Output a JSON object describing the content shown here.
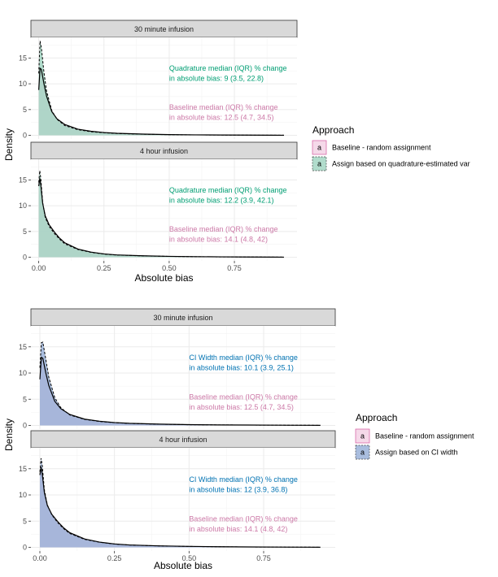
{
  "colors": {
    "baseline_fill": "#f3d0e3",
    "baseline_stroke": "#d6589f",
    "baseline_text": "#cc79a7",
    "quad_fill": "#9ed3bf",
    "quad_text": "#009e73",
    "ci_fill": "#93acd6",
    "ci_text": "#0072b2",
    "panel_bg": "#ffffff",
    "grid": "#ebebeb",
    "strip_bg": "#d9d9d9"
  },
  "chart_data": [
    {
      "type": "area",
      "name": "quadrature-figure",
      "xlabel": "Absolute bias",
      "ylabel": "Density",
      "xlim": [
        -0.03,
        0.99
      ],
      "ylim": [
        -0.7,
        19
      ],
      "x_ticks": [
        0,
        0.25,
        0.5,
        0.75
      ],
      "x_tick_labels": [
        "0.00",
        "0.25",
        "0.50",
        "0.75"
      ],
      "y_ticks": [
        0,
        5,
        10,
        15
      ],
      "y_tick_labels": [
        "0",
        "5",
        "10",
        "15"
      ],
      "legend": {
        "title": "Approach",
        "entries": [
          {
            "label": "Baseline - random assignment",
            "key": "a",
            "series": "baseline"
          },
          {
            "label": "Assign based on quadrature-estimated var",
            "key": "a",
            "series": "alt"
          }
        ]
      },
      "facets": [
        {
          "strip": "30 minute infusion",
          "annotations": [
            {
              "lines": [
                "Quadrature median (IQR) % change",
                "in absolute bias: 9 (3.5, 22.8)"
              ],
              "series": "alt",
              "x": 0.5,
              "y": 12.5
            },
            {
              "lines": [
                "Baseline median (IQR) % change",
                "in absolute bias: 12.5 (4.7, 34.5)"
              ],
              "series": "baseline",
              "x": 0.5,
              "y": 5
            }
          ],
          "series": [
            {
              "name": "Baseline - random assignment",
              "x": [
                0,
                0.005,
                0.01,
                0.02,
                0.03,
                0.05,
                0.07,
                0.1,
                0.15,
                0.2,
                0.25,
                0.3,
                0.4,
                0.5,
                0.6,
                0.7,
                0.8,
                0.9,
                0.94
              ],
              "y": [
                8.8,
                13.0,
                12.8,
                10.0,
                7.6,
                4.6,
                3.2,
                2.1,
                1.2,
                0.8,
                0.55,
                0.4,
                0.25,
                0.15,
                0.1,
                0.07,
                0.05,
                0.03,
                0.02
              ]
            },
            {
              "name": "Assign based on quadrature-estimated var",
              "x": [
                0,
                0.005,
                0.01,
                0.02,
                0.03,
                0.05,
                0.07,
                0.1,
                0.15,
                0.2,
                0.25,
                0.3,
                0.4,
                0.5,
                0.6,
                0.7,
                0.8,
                0.9,
                0.94
              ],
              "y": [
                12.0,
                18.3,
                17.0,
                12.2,
                8.6,
                4.8,
                3.1,
                1.9,
                1.1,
                0.7,
                0.5,
                0.36,
                0.22,
                0.13,
                0.09,
                0.06,
                0.04,
                0.03,
                0.02
              ]
            }
          ]
        },
        {
          "strip": "4 hour infusion",
          "annotations": [
            {
              "lines": [
                "Quadrature median (IQR) % change",
                "in absolute bias: 12.2 (3.9, 42.1)"
              ],
              "series": "alt",
              "x": 0.5,
              "y": 12.5
            },
            {
              "lines": [
                "Baseline median (IQR) % change",
                "in absolute bias: 14.1 (4.8, 42)"
              ],
              "series": "baseline",
              "x": 0.5,
              "y": 5
            }
          ],
          "series": [
            {
              "name": "Baseline - random assignment",
              "x": [
                0,
                0.004,
                0.008,
                0.015,
                0.025,
                0.04,
                0.06,
                0.08,
                0.1,
                0.15,
                0.2,
                0.25,
                0.3,
                0.4,
                0.5,
                0.6,
                0.7,
                0.8,
                0.9,
                0.94
              ],
              "y": [
                13.8,
                15.3,
                14.0,
                10.5,
                8.0,
                6.3,
                4.9,
                3.7,
                2.8,
                1.6,
                1.0,
                0.65,
                0.45,
                0.28,
                0.18,
                0.12,
                0.08,
                0.05,
                0.03,
                0.02
              ]
            },
            {
              "name": "Assign based on quadrature-estimated var",
              "x": [
                0,
                0.004,
                0.008,
                0.015,
                0.025,
                0.04,
                0.06,
                0.08,
                0.1,
                0.15,
                0.2,
                0.25,
                0.3,
                0.4,
                0.5,
                0.6,
                0.7,
                0.8,
                0.9,
                0.94
              ],
              "y": [
                14.5,
                16.8,
                15.2,
                10.6,
                7.7,
                6.0,
                4.6,
                3.5,
                2.6,
                1.5,
                0.95,
                0.62,
                0.43,
                0.27,
                0.17,
                0.11,
                0.07,
                0.05,
                0.03,
                0.02
              ]
            }
          ]
        }
      ]
    },
    {
      "type": "area",
      "name": "ci-width-figure",
      "xlabel": "Absolute bias",
      "ylabel": "Density",
      "xlim": [
        -0.03,
        0.99
      ],
      "ylim": [
        -0.7,
        19
      ],
      "x_ticks": [
        0,
        0.25,
        0.5,
        0.75
      ],
      "x_tick_labels": [
        "0.00",
        "0.25",
        "0.50",
        "0.75"
      ],
      "y_ticks": [
        0,
        5,
        10,
        15
      ],
      "y_tick_labels": [
        "0",
        "5",
        "10",
        "15"
      ],
      "legend": {
        "title": "Approach",
        "entries": [
          {
            "label": "Baseline - random assignment",
            "key": "a",
            "series": "baseline"
          },
          {
            "label": "Assign based on CI width",
            "key": "a",
            "series": "alt"
          }
        ]
      },
      "facets": [
        {
          "strip": "30 minute infusion",
          "annotations": [
            {
              "lines": [
                "CI Width median (IQR) % change",
                "in absolute bias: 10.1 (3.9, 25.1)"
              ],
              "series": "alt",
              "x": 0.5,
              "y": 12.5
            },
            {
              "lines": [
                "Baseline median (IQR) % change",
                "in absolute bias: 12.5 (4.7, 34.5)"
              ],
              "series": "baseline",
              "x": 0.5,
              "y": 5
            }
          ],
          "series": [
            {
              "name": "Baseline - random assignment",
              "x": [
                0,
                0.005,
                0.01,
                0.02,
                0.03,
                0.05,
                0.07,
                0.1,
                0.15,
                0.2,
                0.25,
                0.3,
                0.4,
                0.5,
                0.6,
                0.7,
                0.8,
                0.9,
                0.94
              ],
              "y": [
                8.8,
                13.0,
                12.8,
                10.0,
                7.6,
                4.6,
                3.2,
                2.1,
                1.2,
                0.8,
                0.55,
                0.4,
                0.25,
                0.15,
                0.1,
                0.07,
                0.05,
                0.03,
                0.02
              ]
            },
            {
              "name": "Assign based on CI width",
              "x": [
                0,
                0.005,
                0.01,
                0.02,
                0.03,
                0.05,
                0.07,
                0.1,
                0.15,
                0.2,
                0.25,
                0.3,
                0.4,
                0.5,
                0.6,
                0.7,
                0.8,
                0.9,
                0.94
              ],
              "y": [
                11.0,
                15.8,
                15.9,
                12.6,
                9.2,
                5.3,
                3.4,
                2.0,
                1.15,
                0.75,
                0.52,
                0.38,
                0.24,
                0.14,
                0.1,
                0.07,
                0.05,
                0.03,
                0.02
              ]
            }
          ]
        },
        {
          "strip": "4 hour infusion",
          "annotations": [
            {
              "lines": [
                "CI Width median (IQR) % change",
                "in absolute bias: 12 (3.9, 36.8)"
              ],
              "series": "alt",
              "x": 0.5,
              "y": 12.5
            },
            {
              "lines": [
                "Baseline median (IQR) % change",
                "in absolute bias: 14.1 (4.8, 42)"
              ],
              "series": "baseline",
              "x": 0.5,
              "y": 5
            }
          ],
          "series": [
            {
              "name": "Baseline - random assignment",
              "x": [
                0,
                0.004,
                0.008,
                0.015,
                0.025,
                0.04,
                0.06,
                0.08,
                0.1,
                0.15,
                0.2,
                0.25,
                0.3,
                0.4,
                0.5,
                0.6,
                0.7,
                0.8,
                0.9,
                0.94
              ],
              "y": [
                13.8,
                15.3,
                14.0,
                10.5,
                8.0,
                6.3,
                4.9,
                3.7,
                2.8,
                1.6,
                1.0,
                0.65,
                0.45,
                0.28,
                0.18,
                0.12,
                0.08,
                0.05,
                0.03,
                0.02
              ]
            },
            {
              "name": "Assign based on CI width",
              "x": [
                0,
                0.004,
                0.008,
                0.015,
                0.025,
                0.04,
                0.06,
                0.08,
                0.1,
                0.15,
                0.2,
                0.25,
                0.3,
                0.4,
                0.5,
                0.6,
                0.7,
                0.8,
                0.9,
                0.94
              ],
              "y": [
                14.4,
                17.0,
                15.6,
                11.0,
                8.1,
                6.2,
                4.7,
                3.55,
                2.65,
                1.52,
                0.97,
                0.63,
                0.44,
                0.27,
                0.17,
                0.11,
                0.07,
                0.05,
                0.03,
                0.02
              ]
            }
          ]
        }
      ]
    }
  ]
}
